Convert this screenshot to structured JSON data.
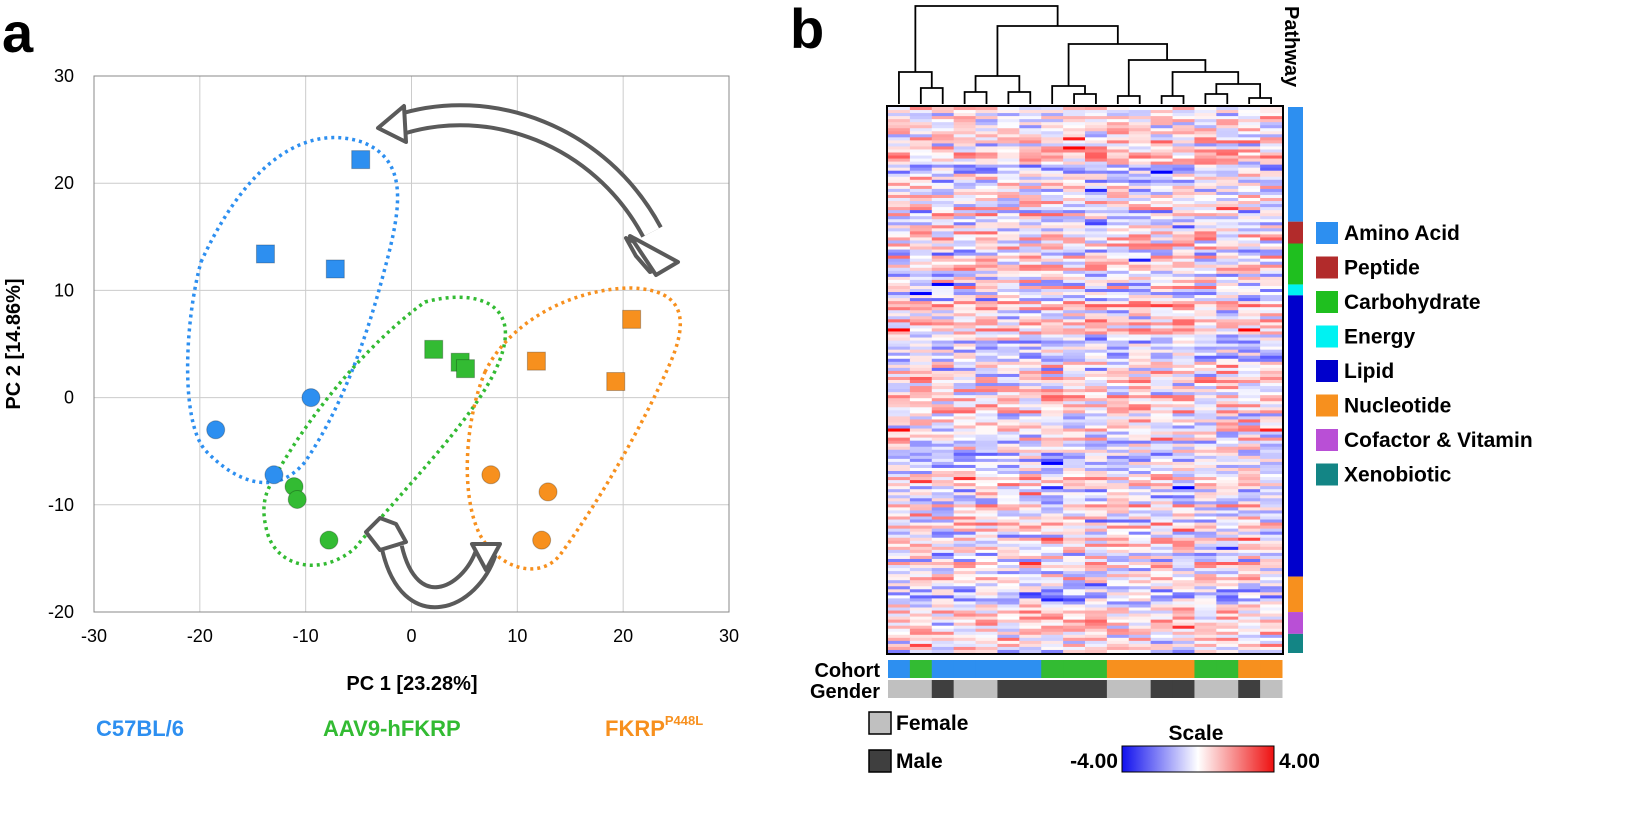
{
  "panel_a_label": "a",
  "panel_b_label": "b",
  "colors": {
    "blue": "#2d8ff0",
    "green": "#33bb33",
    "orange": "#f7901e",
    "arrow": "#5a5a5a",
    "female": "#c0c0c0",
    "male": "#3f3f3f"
  },
  "chart_data": [
    {
      "type": "scatter",
      "panel": "a",
      "xlabel": "PC 1 [23.28%]",
      "ylabel": "PC 2 [14.86%]",
      "xlim": [
        -30,
        30
      ],
      "ylim": [
        -20,
        30
      ],
      "xticks": [
        "-30",
        "-20",
        "-10",
        "0",
        "10",
        "20",
        "30"
      ],
      "yticks": [
        "-20",
        "-10",
        "0",
        "10",
        "20",
        "30"
      ],
      "grid": true,
      "series": [
        {
          "name": "C57BL/6",
          "color": "#2d8ff0",
          "squares": [
            [
              -4.8,
              22.2
            ],
            [
              -13.8,
              13.4
            ],
            [
              -7.2,
              12.0
            ]
          ],
          "circles": [
            [
              -9.5,
              0.0
            ],
            [
              -18.5,
              -3.0
            ],
            [
              -13.0,
              -7.2
            ]
          ]
        },
        {
          "name": "AAV9-hFKRP",
          "color": "#33bb33",
          "squares": [
            [
              2.1,
              4.5
            ],
            [
              4.6,
              3.3
            ],
            [
              5.1,
              2.7
            ]
          ],
          "circles": [
            [
              -11.1,
              -8.3
            ],
            [
              -10.8,
              -9.5
            ],
            [
              -7.8,
              -13.3
            ]
          ]
        },
        {
          "name": "FKRP",
          "color": "#f7901e",
          "squares": [
            [
              20.8,
              7.3
            ],
            [
              11.8,
              3.4
            ],
            [
              19.3,
              1.5
            ]
          ],
          "circles": [
            [
              7.5,
              -7.2
            ],
            [
              12.9,
              -8.8
            ],
            [
              12.3,
              -13.3
            ]
          ]
        }
      ],
      "group_labels": {
        "c57": "C57BL/6",
        "aav": "AAV9-hFKRP",
        "fkrp": "FKRP",
        "fkrp_sup": "P448L"
      }
    },
    {
      "type": "heatmap",
      "panel": "b",
      "pathway_label": "Pathway",
      "legend": [
        "Amino Acid",
        "Peptide",
        "Carbohydrate",
        "Energy",
        "Lipid",
        "Nucleotide",
        "Cofactor & Vitamin",
        "Xenobiotic"
      ],
      "legend_colors": [
        "#2d8ff0",
        "#b22b2b",
        "#1fbf1f",
        "#00f2f2",
        "#0000cc",
        "#f7901e",
        "#b94fd6",
        "#138585"
      ],
      "pathway_fractions": [
        0.21,
        0.04,
        0.075,
        0.02,
        0.515,
        0.065,
        0.04,
        0.035
      ],
      "columns": 18,
      "cohort_label": "Cohort",
      "gender_label": "Gender",
      "cohort": [
        "C57BL/6",
        "AAV9-hFKRP",
        "C57BL/6",
        "C57BL/6",
        "C57BL/6",
        "C57BL/6",
        "C57BL/6",
        "AAV9-hFKRP",
        "AAV9-hFKRP",
        "AAV9-hFKRP",
        "FKRP",
        "FKRP",
        "FKRP",
        "FKRP",
        "AAV9-hFKRP",
        "AAV9-hFKRP",
        "FKRP",
        "FKRP"
      ],
      "gender": [
        "Female",
        "Female",
        "Male",
        "Female",
        "Female",
        "Male",
        "Male",
        "Male",
        "Male",
        "Male",
        "Female",
        "Female",
        "Male",
        "Male",
        "Female",
        "Female",
        "Male",
        "Female"
      ],
      "gender_legend": {
        "female": "Female",
        "male": "Male"
      },
      "scale": {
        "title": "Scale",
        "min": -4.0,
        "max": 4.0,
        "min_label": "-4.00",
        "max_label": "4.00"
      }
    }
  ]
}
